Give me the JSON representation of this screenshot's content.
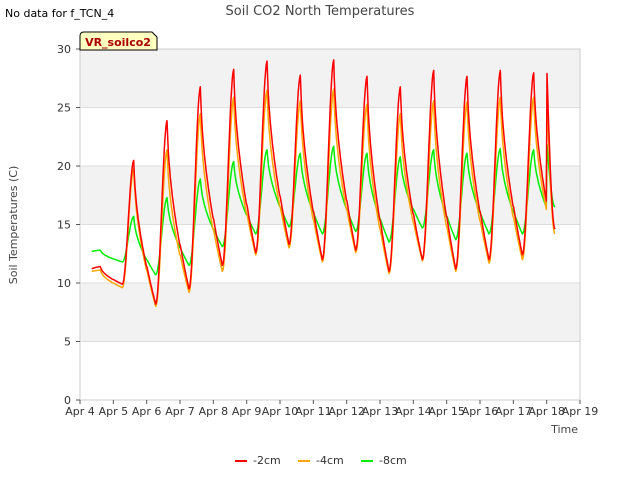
{
  "top_note": "No data for f_TCN_4",
  "chart_data": {
    "type": "line",
    "title": "Soil CO2 North Temperatures",
    "xlabel": "Time",
    "ylabel": "Soil Temperatures (C)",
    "badge": "VR_soilco2",
    "ylim": [
      0,
      30
    ],
    "yticks": [
      0,
      5,
      10,
      15,
      20,
      25,
      30
    ],
    "xlim": [
      "Apr 4",
      "Apr 19"
    ],
    "xticks": [
      "Apr 4",
      "Apr 5",
      "Apr 6",
      "Apr 7",
      "Apr 8",
      "Apr 9",
      "Apr 10",
      "Apr 11",
      "Apr 12",
      "Apr 13",
      "Apr 14",
      "Apr 15",
      "Apr 16",
      "Apr 17",
      "Apr 18",
      "Apr 19"
    ],
    "grid": true,
    "legend_position": "bottom",
    "series": [
      {
        "name": "-2cm",
        "color": "#ff0000",
        "daily_min": [
          11.2,
          9.9,
          8.2,
          9.5,
          11.5,
          12.6,
          13.3,
          12.0,
          12.8,
          11.0,
          12.0,
          11.2,
          12.0,
          12.4,
          13.0
        ],
        "daily_max": [
          11.4,
          20.5,
          23.9,
          26.8,
          28.3,
          29.0,
          27.8,
          29.1,
          27.7,
          26.8,
          28.2,
          27.7,
          28.2,
          28.0,
          28.8
        ],
        "final": 14.6
      },
      {
        "name": "-4cm",
        "color": "#ffa500",
        "daily_min": [
          11.0,
          9.6,
          8.0,
          9.2,
          11.0,
          12.4,
          13.0,
          11.8,
          12.6,
          10.8,
          11.9,
          11.0,
          11.7,
          12.0,
          12.8
        ],
        "daily_max": [
          11.1,
          19.8,
          21.4,
          24.5,
          25.9,
          26.5,
          25.6,
          26.6,
          25.3,
          24.5,
          25.6,
          25.5,
          25.9,
          25.9,
          26.8
        ],
        "final": 14.2
      },
      {
        "name": "-8cm",
        "color": "#00ee00",
        "daily_min": [
          12.7,
          11.8,
          10.7,
          11.5,
          13.1,
          14.2,
          14.8,
          14.2,
          14.4,
          13.5,
          14.7,
          13.7,
          14.2,
          14.2,
          14.7
        ],
        "daily_max": [
          12.8,
          15.7,
          17.3,
          18.9,
          20.4,
          21.4,
          21.1,
          21.7,
          21.1,
          20.8,
          21.4,
          21.1,
          21.5,
          21.4,
          22.2
        ],
        "final": 16.5
      }
    ]
  }
}
